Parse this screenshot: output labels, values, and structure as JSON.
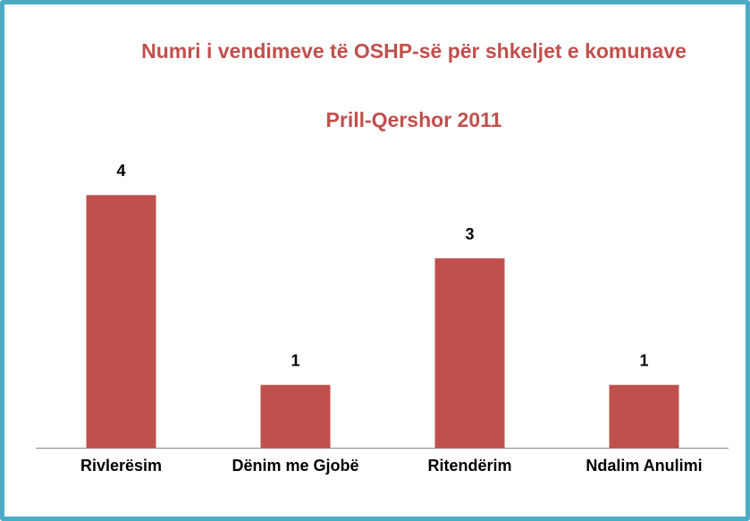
{
  "chart_data": {
    "type": "bar",
    "title": "Numri i vendimeve të OSHP-së për shkeljet e komunave",
    "subtitle": "Prill-Qershor 2011",
    "categories": [
      "Rivlerësim",
      "Dënim me Gjobë",
      "Ritendërim",
      "Ndalim Anulimi"
    ],
    "values": [
      4,
      1,
      3,
      1
    ],
    "color": "#c0504d"
  }
}
